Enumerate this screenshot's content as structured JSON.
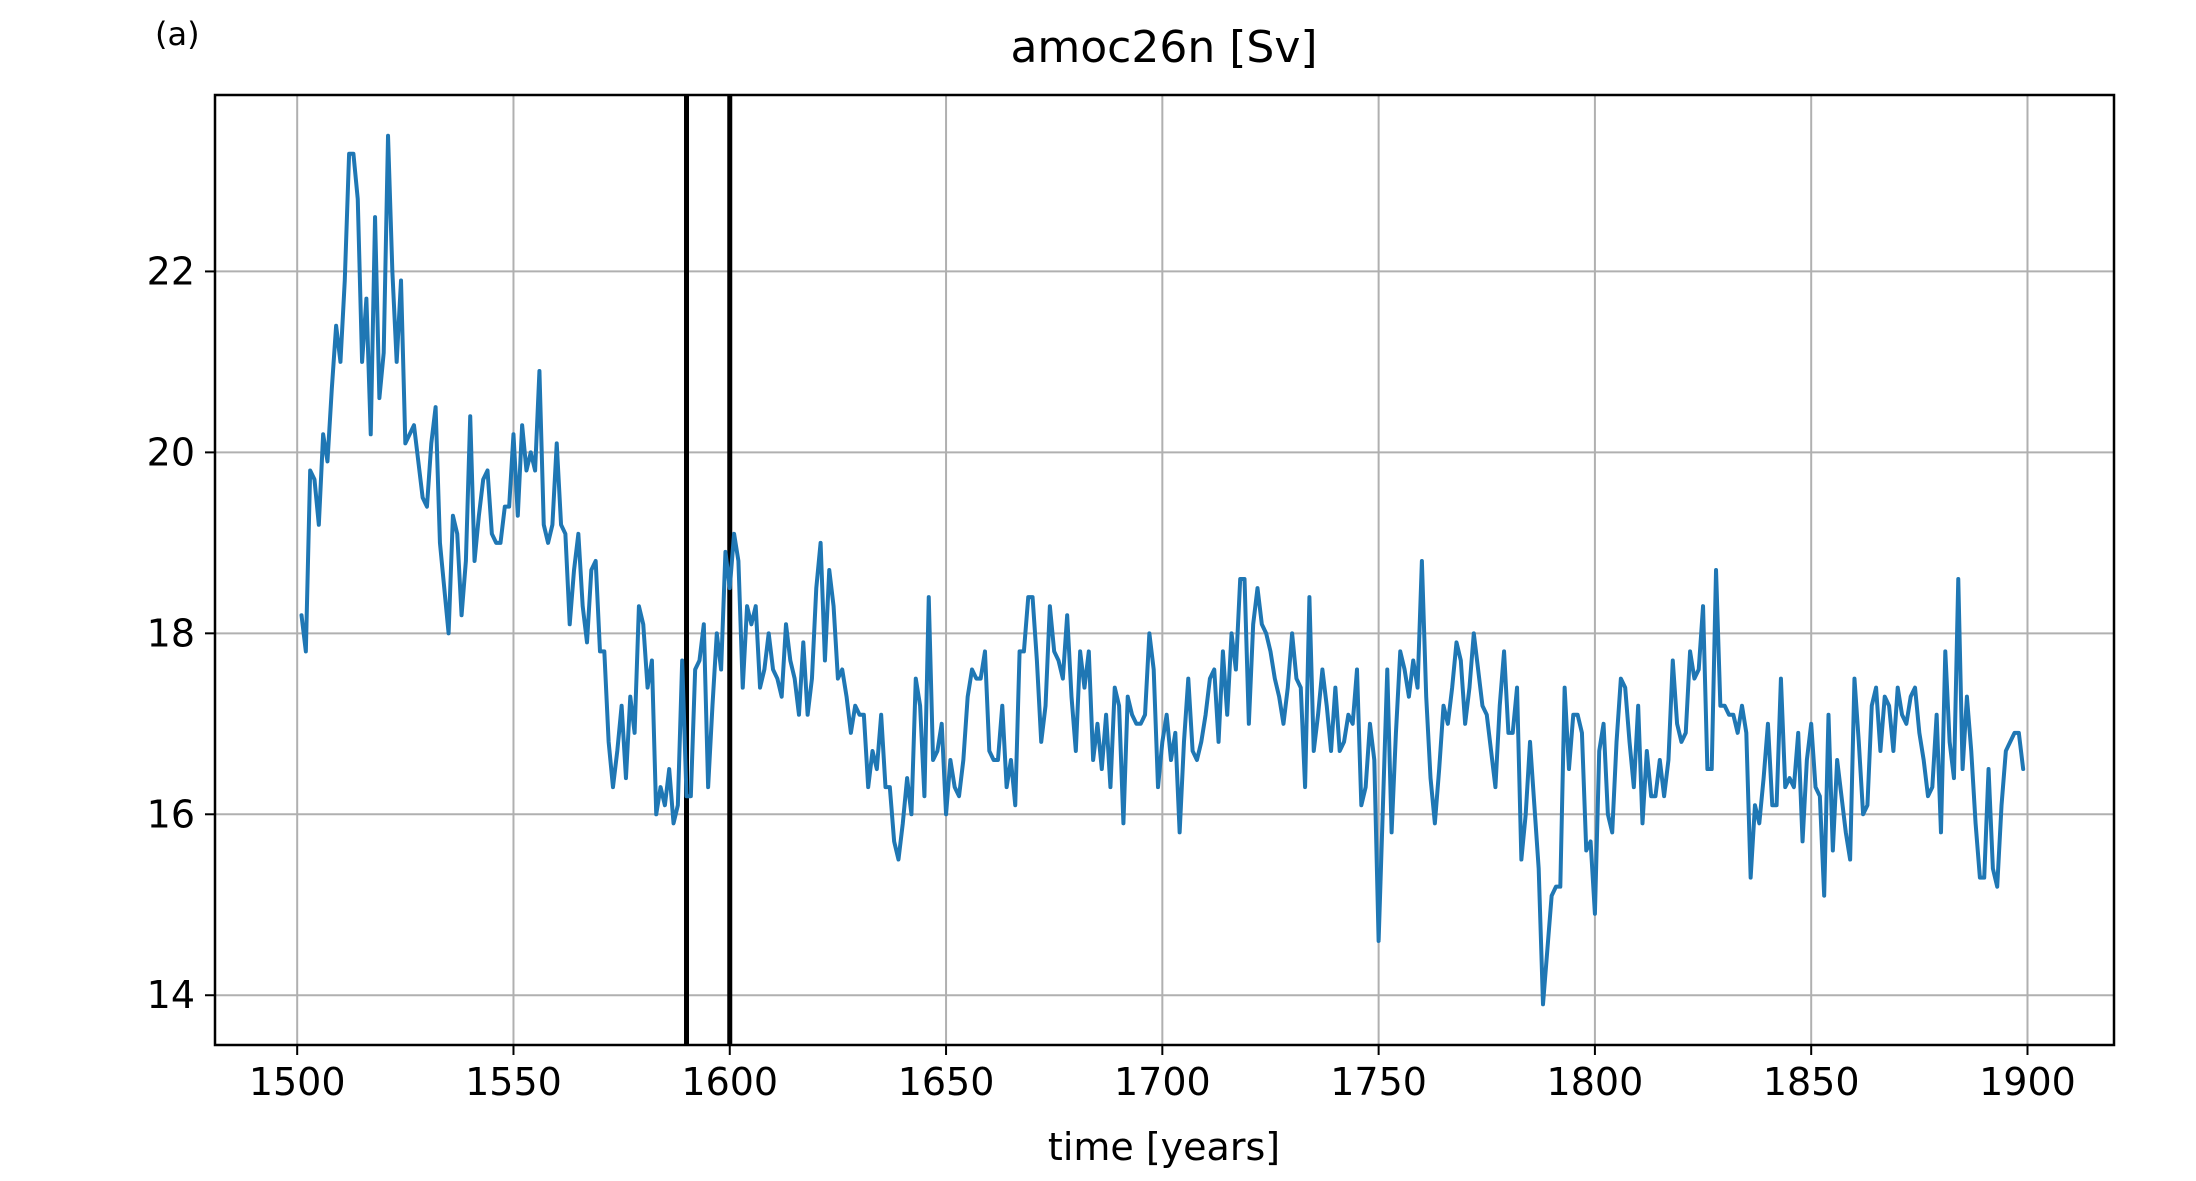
{
  "chart_data": {
    "type": "line",
    "panel_label": "(a)",
    "title": "amoc26n [Sv]",
    "xlabel": "time [years]",
    "ylabel": "",
    "xlim": [
      1481,
      1920
    ],
    "ylim": [
      13.45,
      23.95
    ],
    "xticks": [
      1500,
      1550,
      1600,
      1650,
      1700,
      1750,
      1800,
      1850,
      1900
    ],
    "yticks": [
      14,
      16,
      18,
      20,
      22
    ],
    "grid": true,
    "legend": "none",
    "line_color": "#1f77b4",
    "vline_color": "#000000",
    "vertical_lines": [
      1590,
      1600
    ],
    "series": [
      {
        "x_start": 1501,
        "x_step": 1,
        "values": [
          18.2,
          17.8,
          19.8,
          19.7,
          19.2,
          20.2,
          19.9,
          20.7,
          21.4,
          21.0,
          21.9,
          23.3,
          23.3,
          22.8,
          21.0,
          21.7,
          20.2,
          22.6,
          20.6,
          21.1,
          23.5,
          22.0,
          21.0,
          21.9,
          20.1,
          20.2,
          20.3,
          19.9,
          19.5,
          19.4,
          20.1,
          20.5,
          19.0,
          18.5,
          18.0,
          19.3,
          19.1,
          18.2,
          18.8,
          20.4,
          18.8,
          19.3,
          19.7,
          19.8,
          19.1,
          19.0,
          19.0,
          19.4,
          19.4,
          20.2,
          19.3,
          20.3,
          19.8,
          20.0,
          19.8,
          20.9,
          19.2,
          19.0,
          19.2,
          20.1,
          19.2,
          19.1,
          18.1,
          18.7,
          19.1,
          18.3,
          17.9,
          18.7,
          18.8,
          17.8,
          17.8,
          16.8,
          16.3,
          16.7,
          17.2,
          16.4,
          17.3,
          16.9,
          18.3,
          18.1,
          17.4,
          17.7,
          16.0,
          16.3,
          16.1,
          16.5,
          15.9,
          16.1,
          17.7,
          16.2,
          16.2,
          17.6,
          17.7,
          18.1,
          16.3,
          17.2,
          18.0,
          17.6,
          18.9,
          18.5,
          19.1,
          18.8,
          17.4,
          18.3,
          18.1,
          18.3,
          17.4,
          17.6,
          18.0,
          17.6,
          17.5,
          17.3,
          18.1,
          17.7,
          17.5,
          17.1,
          17.9,
          17.1,
          17.5,
          18.5,
          19.0,
          17.7,
          18.7,
          18.3,
          17.5,
          17.6,
          17.3,
          16.9,
          17.2,
          17.1,
          17.1,
          16.3,
          16.7,
          16.5,
          17.1,
          16.3,
          16.3,
          15.7,
          15.5,
          15.9,
          16.4,
          16.0,
          17.5,
          17.2,
          16.2,
          18.4,
          16.6,
          16.7,
          17.0,
          16.0,
          16.6,
          16.3,
          16.2,
          16.6,
          17.3,
          17.6,
          17.5,
          17.5,
          17.8,
          16.7,
          16.6,
          16.6,
          17.2,
          16.3,
          16.6,
          16.1,
          17.8,
          17.8,
          18.4,
          18.4,
          17.7,
          16.8,
          17.2,
          18.3,
          17.8,
          17.7,
          17.5,
          18.2,
          17.3,
          16.7,
          17.8,
          17.4,
          17.8,
          16.6,
          17.0,
          16.5,
          17.1,
          16.3,
          17.4,
          17.2,
          15.9,
          17.3,
          17.1,
          17.0,
          17.0,
          17.1,
          18.0,
          17.6,
          16.3,
          16.8,
          17.1,
          16.6,
          16.9,
          15.8,
          16.8,
          17.5,
          16.7,
          16.6,
          16.8,
          17.1,
          17.5,
          17.6,
          16.8,
          17.8,
          17.1,
          18.0,
          17.6,
          18.6,
          18.6,
          17.0,
          18.1,
          18.5,
          18.1,
          18.0,
          17.8,
          17.5,
          17.3,
          17.0,
          17.4,
          18.0,
          17.5,
          17.4,
          16.3,
          18.4,
          16.7,
          17.1,
          17.6,
          17.2,
          16.7,
          17.4,
          16.7,
          16.8,
          17.1,
          17.0,
          17.6,
          16.1,
          16.3,
          17.0,
          16.6,
          14.6,
          16.1,
          17.6,
          15.8,
          16.9,
          17.8,
          17.6,
          17.3,
          17.7,
          17.4,
          18.8,
          17.3,
          16.4,
          15.9,
          16.5,
          17.2,
          17.0,
          17.4,
          17.9,
          17.7,
          17.0,
          17.4,
          18.0,
          17.6,
          17.2,
          17.1,
          16.7,
          16.3,
          17.2,
          17.8,
          16.9,
          16.9,
          17.4,
          15.5,
          16.0,
          16.8,
          16.1,
          15.4,
          13.9,
          14.5,
          15.1,
          15.2,
          15.2,
          17.4,
          16.5,
          17.1,
          17.1,
          16.9,
          15.6,
          15.7,
          14.9,
          16.7,
          17.0,
          16.0,
          15.8,
          16.8,
          17.5,
          17.4,
          16.8,
          16.3,
          17.2,
          15.9,
          16.7,
          16.2,
          16.2,
          16.6,
          16.2,
          16.6,
          17.7,
          17.0,
          16.8,
          16.9,
          17.8,
          17.5,
          17.6,
          18.3,
          16.5,
          16.5,
          18.7,
          17.2,
          17.2,
          17.1,
          17.1,
          16.9,
          17.2,
          16.9,
          15.3,
          16.1,
          15.9,
          16.4,
          17.0,
          16.1,
          16.1,
          17.5,
          16.3,
          16.4,
          16.3,
          16.9,
          15.7,
          16.6,
          17.0,
          16.3,
          16.2,
          15.1,
          17.1,
          15.6,
          16.6,
          16.2,
          15.8,
          15.5,
          17.5,
          16.8,
          16.0,
          16.1,
          17.2,
          17.4,
          16.7,
          17.3,
          17.2,
          16.7,
          17.4,
          17.1,
          17.0,
          17.3,
          17.4,
          16.9,
          16.6,
          16.2,
          16.3,
          17.1,
          15.8,
          17.8,
          16.8,
          16.4,
          18.6,
          16.5,
          17.3,
          16.7,
          15.9,
          15.3,
          15.3,
          16.5,
          15.4,
          15.2,
          16.1,
          16.7,
          16.8,
          16.9,
          16.9,
          16.5
        ]
      }
    ]
  }
}
